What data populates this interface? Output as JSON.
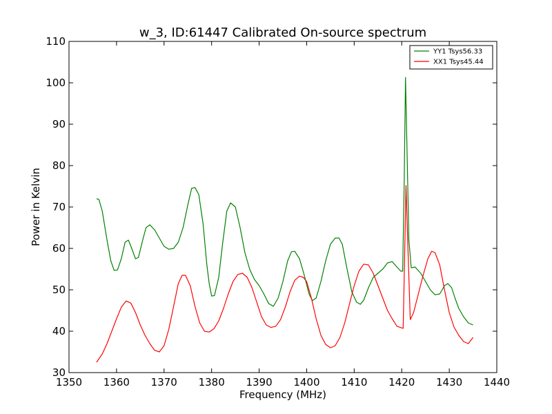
{
  "chart_data": {
    "type": "line",
    "title": "w_3, ID:61447 Calibrated On-source spectrum",
    "xlabel": "Frequency (MHz)",
    "ylabel": "Power in Kelvin",
    "xlim": [
      1350,
      1440
    ],
    "ylim": [
      30,
      110
    ],
    "xticks": [
      1350,
      1360,
      1370,
      1380,
      1390,
      1400,
      1410,
      1420,
      1430,
      1440
    ],
    "yticks": [
      30,
      40,
      50,
      60,
      70,
      80,
      90,
      100,
      110
    ],
    "grid": false,
    "legend_position": "top-right",
    "series": [
      {
        "name": "YY1 Tsys56.33",
        "color": "#008000",
        "x": [
          1355.8,
          1356.3,
          1357.0,
          1358.0,
          1358.8,
          1359.5,
          1360.2,
          1361.0,
          1361.8,
          1362.5,
          1363.2,
          1364.0,
          1364.6,
          1365.5,
          1366.2,
          1367.0,
          1368.0,
          1369.0,
          1370.0,
          1371.0,
          1372.0,
          1373.0,
          1374.0,
          1375.0,
          1375.8,
          1376.5,
          1377.3,
          1378.2,
          1379.0,
          1379.5,
          1380.0,
          1380.6,
          1381.5,
          1382.3,
          1383.2,
          1384.0,
          1385.0,
          1386.0,
          1387.0,
          1388.0,
          1389.0,
          1390.0,
          1391.0,
          1392.0,
          1393.0,
          1394.0,
          1395.0,
          1396.0,
          1396.8,
          1397.5,
          1398.5,
          1399.5,
          1400.5,
          1401.2,
          1402.0,
          1403.0,
          1404.0,
          1405.0,
          1406.0,
          1406.8,
          1407.5,
          1408.5,
          1409.5,
          1410.5,
          1411.3,
          1412.0,
          1413.0,
          1414.0,
          1415.0,
          1416.0,
          1417.0,
          1418.0,
          1419.0,
          1419.8,
          1420.2,
          1420.5,
          1420.8,
          1421.0,
          1421.5,
          1422.0,
          1422.8,
          1424.0,
          1425.0,
          1426.0,
          1427.0,
          1428.0,
          1429.0,
          1429.7,
          1430.5,
          1431.2,
          1432.0,
          1433.0,
          1434.0,
          1435.0
        ],
        "values": [
          72.0,
          71.8,
          69.0,
          62.0,
          57.0,
          54.7,
          54.8,
          57.5,
          61.5,
          62.0,
          60.0,
          57.5,
          57.8,
          62.0,
          65.0,
          65.7,
          64.5,
          62.5,
          60.5,
          59.8,
          60.0,
          61.5,
          65.0,
          70.5,
          74.5,
          74.7,
          73.0,
          66.0,
          56.0,
          51.5,
          48.5,
          48.6,
          53.0,
          61.0,
          69.0,
          71.0,
          70.0,
          65.0,
          59.0,
          55.0,
          52.5,
          51.0,
          49.0,
          46.7,
          46.0,
          48.0,
          52.0,
          57.0,
          59.2,
          59.3,
          57.5,
          53.5,
          49.0,
          47.4,
          48.0,
          52.0,
          57.0,
          61.0,
          62.5,
          62.5,
          61.0,
          55.0,
          49.5,
          47.0,
          46.5,
          47.5,
          50.5,
          53.0,
          54.0,
          55.0,
          56.5,
          56.8,
          55.5,
          54.5,
          54.5,
          75.0,
          101.3,
          90.0,
          62.0,
          55.3,
          55.5,
          54.0,
          52.0,
          50.0,
          48.8,
          49.0,
          51.0,
          51.5,
          50.5,
          48.0,
          45.5,
          43.5,
          42.0,
          41.5
        ]
      },
      {
        "name": "XX1 Tsys45.44",
        "color": "#ff0000",
        "x": [
          1355.8,
          1357.0,
          1358.0,
          1359.0,
          1360.0,
          1361.0,
          1362.0,
          1363.0,
          1364.0,
          1365.0,
          1366.0,
          1367.0,
          1368.0,
          1369.0,
          1370.0,
          1371.0,
          1372.0,
          1373.0,
          1373.8,
          1374.5,
          1375.5,
          1376.5,
          1377.5,
          1378.5,
          1379.5,
          1380.5,
          1381.5,
          1382.5,
          1383.5,
          1384.5,
          1385.5,
          1386.5,
          1387.5,
          1388.5,
          1389.5,
          1390.5,
          1391.5,
          1392.5,
          1393.5,
          1394.5,
          1395.5,
          1396.5,
          1397.5,
          1398.5,
          1399.3,
          1400.0,
          1401.0,
          1402.0,
          1403.0,
          1404.0,
          1405.0,
          1406.0,
          1407.0,
          1408.0,
          1409.0,
          1410.0,
          1411.0,
          1412.0,
          1413.0,
          1414.0,
          1415.0,
          1416.0,
          1417.0,
          1418.0,
          1419.0,
          1420.0,
          1420.3,
          1420.6,
          1420.9,
          1421.3,
          1421.8,
          1422.5,
          1423.5,
          1424.5,
          1425.5,
          1426.3,
          1427.0,
          1428.0,
          1429.0,
          1430.0,
          1431.0,
          1432.0,
          1433.0,
          1434.0,
          1435.0
        ],
        "values": [
          32.5,
          34.5,
          37.0,
          40.0,
          43.0,
          45.8,
          47.3,
          46.8,
          44.5,
          41.5,
          39.0,
          37.0,
          35.4,
          35.0,
          36.5,
          40.5,
          46.0,
          51.5,
          53.5,
          53.5,
          51.0,
          46.0,
          42.0,
          40.0,
          39.8,
          40.6,
          42.5,
          45.5,
          49.0,
          52.0,
          53.7,
          54.0,
          53.0,
          50.5,
          47.0,
          43.5,
          41.5,
          40.9,
          41.2,
          42.8,
          45.8,
          49.5,
          52.3,
          53.3,
          53.0,
          52.0,
          48.0,
          43.0,
          39.0,
          36.8,
          36.0,
          36.5,
          38.5,
          42.0,
          46.5,
          51.0,
          54.5,
          56.2,
          56.0,
          54.0,
          51.0,
          48.0,
          45.0,
          43.0,
          41.2,
          40.8,
          40.7,
          58.0,
          75.2,
          60.0,
          42.8,
          44.5,
          49.0,
          53.5,
          57.5,
          59.3,
          59.0,
          56.0,
          50.0,
          44.5,
          41.0,
          39.0,
          37.5,
          37.0,
          38.5
        ]
      }
    ]
  }
}
